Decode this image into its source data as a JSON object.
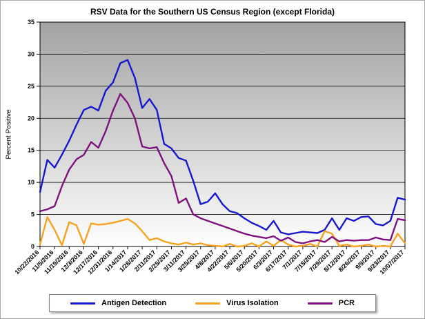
{
  "chart_data": {
    "type": "line",
    "title": "RSV Data for the Southern US Census Region (except Florida)",
    "xlabel": "",
    "ylabel": "Percent Positive",
    "ylim": [
      0,
      35
    ],
    "ytick_step": 5,
    "grid": "horizontal",
    "legend_position": "bottom",
    "plot_bg_gradient": [
      "#a2a2a2",
      "#fefefe"
    ],
    "points_per_tick": 2,
    "x_tick_labels": [
      "10/22/2016",
      "11/5/2016",
      "11/19/2016",
      "12/3/2016",
      "12/17/2016",
      "12/31/2016",
      "1/14/2017",
      "1/28/2017",
      "2/11/2017",
      "2/25/2017",
      "3/11/2017",
      "3/25/2017",
      "4/8/2017",
      "4/22/2017",
      "5/6/2017",
      "5/20/2017",
      "6/3/2017",
      "6/17/2017",
      "7/1/2017",
      "7/15/2017",
      "7/29/2017",
      "8/12/2017",
      "8/26/2017",
      "9/9/2017",
      "9/23/2017",
      "10/07/2017"
    ],
    "series": [
      {
        "name": "Antigen Detection",
        "color": "#1717cd",
        "values": [
          8.5,
          13.5,
          12.3,
          14.3,
          16.5,
          19.0,
          21.3,
          21.8,
          21.2,
          24.3,
          25.6,
          28.6,
          29.1,
          26.3,
          21.6,
          23.0,
          21.3,
          16.0,
          15.3,
          13.8,
          13.4,
          10.2,
          6.6,
          7.0,
          8.3,
          6.6,
          5.5,
          5.2,
          4.4,
          3.7,
          3.2,
          2.6,
          4.0,
          2.2,
          1.9,
          2.1,
          2.3,
          2.2,
          2.1,
          2.6,
          4.4,
          2.6,
          4.4,
          4.0,
          4.6,
          4.7,
          3.5,
          3.3,
          4.0,
          7.6,
          7.3
        ]
      },
      {
        "name": "Virus Isolation",
        "color": "#f5a31f",
        "values": [
          0.3,
          4.6,
          2.6,
          0.2,
          3.8,
          3.3,
          0.4,
          3.6,
          3.4,
          3.5,
          3.7,
          4.0,
          4.3,
          3.6,
          2.4,
          1.0,
          1.3,
          0.8,
          0.5,
          0.3,
          0.6,
          0.3,
          0.5,
          0.2,
          0.1,
          0.0,
          0.4,
          0.0,
          0.1,
          0.5,
          0.0,
          0.8,
          0.1,
          1.0,
          0.3,
          0.0,
          0.1,
          0.4,
          0.0,
          2.4,
          2.0,
          0.1,
          0.3,
          0.0,
          0.1,
          0.3,
          0.0,
          0.1,
          0.0,
          2.0,
          0.5
        ]
      },
      {
        "name": "PCR",
        "color": "#7e117e",
        "values": [
          5.5,
          5.8,
          6.3,
          9.4,
          12.0,
          13.6,
          14.3,
          16.3,
          15.4,
          18.0,
          21.2,
          23.8,
          22.4,
          20.0,
          15.6,
          15.3,
          15.5,
          13.0,
          11.0,
          6.8,
          7.5,
          5.0,
          4.4,
          4.0,
          3.6,
          3.2,
          2.8,
          2.4,
          2.0,
          1.7,
          1.5,
          1.3,
          1.6,
          0.9,
          1.4,
          0.7,
          0.5,
          0.8,
          1.0,
          0.7,
          1.5,
          0.8,
          1.0,
          0.9,
          1.0,
          1.0,
          1.4,
          1.1,
          1.0,
          4.3,
          4.1
        ]
      }
    ]
  }
}
